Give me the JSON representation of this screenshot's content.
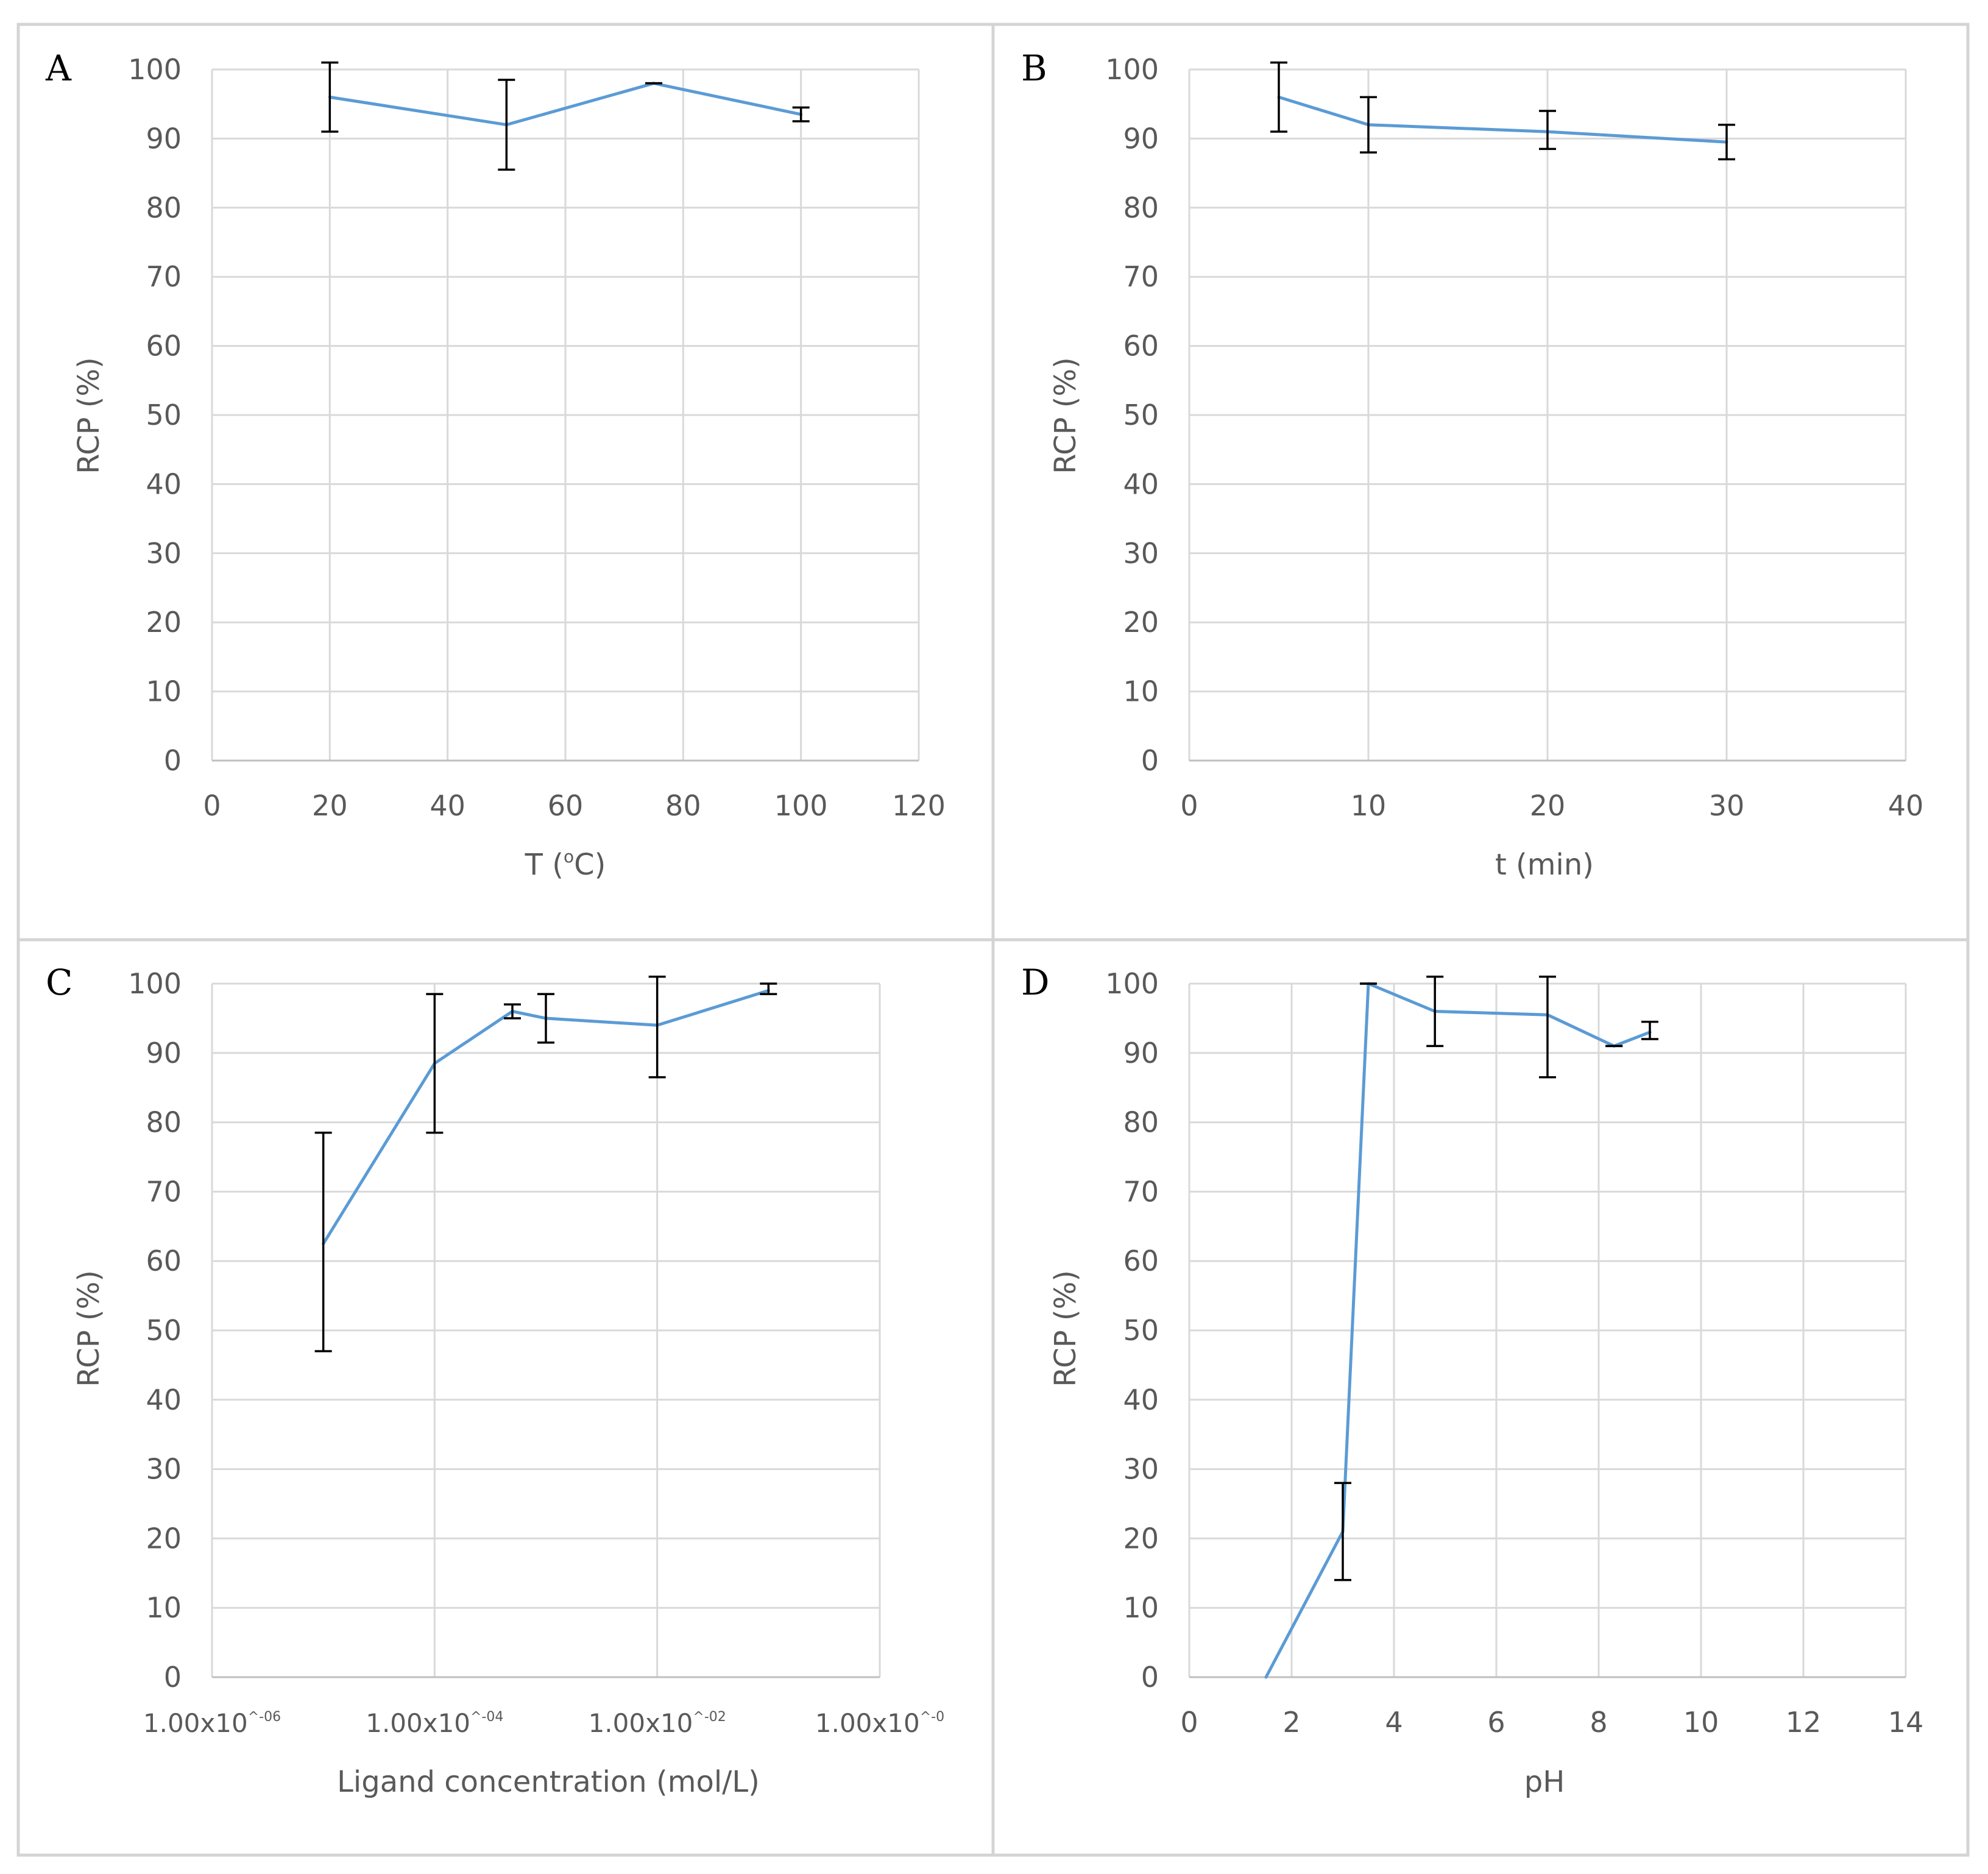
{
  "colors": {
    "series": "#5b9bd5",
    "error_bar": "#000000",
    "grid": "#d9d9d9",
    "text": "#595959",
    "border": "#d4d4d4"
  },
  "chart_data": [
    {
      "panel": "A",
      "type": "line",
      "xlabel": "T (°C)",
      "xlabel_main": "T (",
      "xlabel_sup": "o",
      "xlabel_end": "C)",
      "ylabel": "RCP (%)",
      "xlim": [
        0,
        120
      ],
      "ylim": [
        0,
        100
      ],
      "x_ticks": [
        "0",
        "20",
        "40",
        "60",
        "80",
        "100",
        "120"
      ],
      "y_ticks": [
        "0",
        "10",
        "20",
        "30",
        "40",
        "50",
        "60",
        "70",
        "80",
        "90",
        "100"
      ],
      "series": [
        {
          "name": "RCP",
          "x": [
            20,
            50,
            75,
            100
          ],
          "y": [
            96,
            92,
            98,
            93.5
          ],
          "err_low": [
            91,
            85.5,
            98,
            92.5
          ],
          "err_high": [
            101,
            98.5,
            98,
            94.5
          ]
        }
      ]
    },
    {
      "panel": "B",
      "type": "line",
      "xlabel": "t (min)",
      "ylabel": "RCP (%)",
      "xlim": [
        0,
        40
      ],
      "ylim": [
        0,
        100
      ],
      "x_ticks": [
        "0",
        "10",
        "20",
        "30",
        "40"
      ],
      "y_ticks": [
        "0",
        "10",
        "20",
        "30",
        "40",
        "50",
        "60",
        "70",
        "80",
        "90",
        "100"
      ],
      "series": [
        {
          "name": "RCP",
          "x": [
            5,
            10,
            20,
            30
          ],
          "y": [
            96,
            92,
            91,
            89.5
          ],
          "err_low": [
            91,
            88,
            88.5,
            87
          ],
          "err_high": [
            101,
            96,
            94,
            92
          ]
        }
      ]
    },
    {
      "panel": "C",
      "type": "line",
      "xscale": "log",
      "xlabel": "Ligand concentration (mol/L)",
      "ylabel": "RCP (%)",
      "xlim": [
        1e-06,
        1
      ],
      "ylim": [
        0,
        100
      ],
      "x_ticks_base": [
        "1.00x10",
        "1.00x10",
        "1.00x10",
        "1.00x10"
      ],
      "x_ticks_exp": [
        "^-06",
        "^-04",
        "^-02",
        "^-0"
      ],
      "y_ticks": [
        "0",
        "10",
        "20",
        "30",
        "40",
        "50",
        "60",
        "70",
        "80",
        "90",
        "100"
      ],
      "series": [
        {
          "name": "RCP",
          "x": [
            1e-05,
            0.0001,
            0.0005,
            0.001,
            0.01,
            0.1
          ],
          "y": [
            62.5,
            88.5,
            96,
            95,
            94,
            99
          ],
          "err_low": [
            47,
            78.5,
            95,
            91.5,
            86.5,
            98.5
          ],
          "err_high": [
            78.5,
            98.5,
            97,
            98.5,
            101,
            100
          ]
        }
      ]
    },
    {
      "panel": "D",
      "type": "line",
      "xlabel": "pH",
      "ylabel": "RCP (%)",
      "xlim": [
        0,
        14
      ],
      "ylim": [
        0,
        100
      ],
      "x_ticks": [
        "0",
        "2",
        "4",
        "6",
        "8",
        "10",
        "12",
        "14"
      ],
      "y_ticks": [
        "0",
        "10",
        "20",
        "30",
        "40",
        "50",
        "60",
        "70",
        "80",
        "90",
        "100"
      ],
      "series": [
        {
          "name": "RCP",
          "x": [
            1.5,
            3,
            3.5,
            4.8,
            7,
            8.3,
            9
          ],
          "y": [
            0,
            21,
            100,
            96,
            95.5,
            91,
            93
          ],
          "err_low": [
            null,
            14,
            100,
            91,
            86.5,
            91,
            92
          ],
          "err_high": [
            null,
            28,
            100,
            101,
            101,
            91,
            94.5
          ]
        }
      ]
    }
  ]
}
